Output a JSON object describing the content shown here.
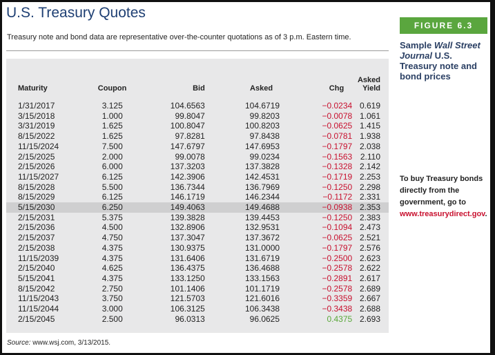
{
  "header": {
    "title": "U.S. Treasury Quotes",
    "subtitle": "Treasury note and bond data are representative over-the-counter quotations as of 3 p.m. Eastern time."
  },
  "table": {
    "columns": [
      "Maturity",
      "Coupon",
      "Bid",
      "Asked",
      "Chg",
      "Asked Yield"
    ],
    "rows": [
      [
        "1/31/2017",
        "3.125",
        "104.6563",
        "104.6719",
        "−0.0234",
        "0.619"
      ],
      [
        "3/15/2018",
        "1.000",
        "99.8047",
        "99.8203",
        "−0.0078",
        "1.061"
      ],
      [
        "3/31/2019",
        "1.625",
        "100.8047",
        "100.8203",
        "−0.0625",
        "1.415"
      ],
      [
        "8/15/2022",
        "1.625",
        "97.8281",
        "97.8438",
        "−0.0781",
        "1.938"
      ],
      [
        "11/15/2024",
        "7.500",
        "147.6797",
        "147.6953",
        "−0.1797",
        "2.038"
      ],
      [
        "2/15/2025",
        "2.000",
        "99.0078",
        "99.0234",
        "−0.1563",
        "2.110"
      ],
      [
        "2/15/2026",
        "6.000",
        "137.3203",
        "137.3828",
        "−0.1328",
        "2.142"
      ],
      [
        "11/15/2027",
        "6.125",
        "142.3906",
        "142.4531",
        "−0.1719",
        "2.253"
      ],
      [
        "8/15/2028",
        "5.500",
        "136.7344",
        "136.7969",
        "−0.1250",
        "2.298"
      ],
      [
        "8/15/2029",
        "6.125",
        "146.1719",
        "146.2344",
        "−0.1172",
        "2.331"
      ],
      [
        "5/15/2030",
        "6.250",
        "149.4063",
        "149.4688",
        "−0.0938",
        "2.353"
      ],
      [
        "2/15/2031",
        "5.375",
        "139.3828",
        "139.4453",
        "−0.1250",
        "2.383"
      ],
      [
        "2/15/2036",
        "4.500",
        "132.8906",
        "132.9531",
        "−0.1094",
        "2.473"
      ],
      [
        "2/15/2037",
        "4.750",
        "137.3047",
        "137.3672",
        "−0.0625",
        "2.521"
      ],
      [
        "2/15/2038",
        "4.375",
        "130.9375",
        "131.0000",
        "−0.1797",
        "2.576"
      ],
      [
        "11/15/2039",
        "4.375",
        "131.6406",
        "131.6719",
        "−0.2500",
        "2.623"
      ],
      [
        "2/15/2040",
        "4.625",
        "136.4375",
        "136.4688",
        "−0.2578",
        "2.622"
      ],
      [
        "5/15/2041",
        "4.375",
        "133.1250",
        "133.1563",
        "−0.2891",
        "2.617"
      ],
      [
        "8/15/2042",
        "2.750",
        "101.1406",
        "101.1719",
        "−0.2578",
        "2.689"
      ],
      [
        "11/15/2043",
        "3.750",
        "121.5703",
        "121.6016",
        "−0.3359",
        "2.667"
      ],
      [
        "11/15/2044",
        "3.000",
        "106.3125",
        "106.3438",
        "−0.3438",
        "2.688"
      ],
      [
        "2/15/2045",
        "2.500",
        "96.0313",
        "96.0625",
        "0.4375",
        "2.693"
      ]
    ]
  },
  "source": [
    "Source:",
    " www.wsj.com, 3/13/2015."
  ],
  "figure": {
    "label": "FIGURE 6.3",
    "caption": [
      "Sample ",
      "Wall Street Journal",
      " U.S. Treasury note and bond prices"
    ]
  },
  "note": [
    "To buy Treasury bonds directly from the government, go to ",
    "www.treasurydirect.gov",
    "."
  ]
}
